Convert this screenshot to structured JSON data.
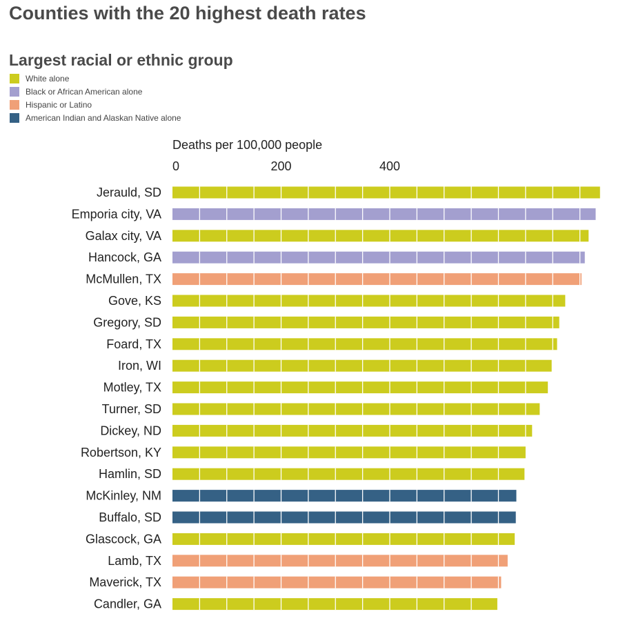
{
  "chart_data": {
    "type": "bar",
    "orientation": "horizontal",
    "title": "Counties with the 20 highest death rates",
    "legend_title": "Largest racial or ethnic group",
    "legend": [
      {
        "name": "White alone",
        "color": "#cccc1e"
      },
      {
        "name": "Black or African American alone",
        "color": "#a39fcf"
      },
      {
        "name": "Hispanic or Latino",
        "color": "#f0a077"
      },
      {
        "name": "American Indian and Alaskan Native alone",
        "color": "#356185"
      }
    ],
    "xlabel": "Deaths per 100,000 people",
    "xticks": [
      0,
      200,
      400
    ],
    "xtick_labels": [
      "0",
      "200",
      "400"
    ],
    "xlim": [
      0,
      790
    ],
    "categories": [
      "Jerauld, SD",
      "Emporia city, VA",
      "Galax city, VA",
      "Hancock, GA",
      "McMullen, TX",
      "Gove, KS",
      "Gregory, SD",
      "Foard, TX",
      "Iron, WI",
      "Motley, TX",
      "Turner, SD",
      "Dickey, ND",
      "Robertson, KY",
      "Hamlin, SD",
      "McKinley, NM",
      "Buffalo, SD",
      "Glascock, GA",
      "Lamb, TX",
      "Maverick, TX",
      "Candler, GA"
    ],
    "values": [
      787,
      779,
      766,
      759,
      753,
      723,
      712,
      708,
      698,
      691,
      676,
      662,
      650,
      648,
      633,
      632,
      630,
      617,
      605,
      598
    ],
    "groups": [
      "White alone",
      "Black or African American alone",
      "White alone",
      "Black or African American alone",
      "Hispanic or Latino",
      "White alone",
      "White alone",
      "White alone",
      "White alone",
      "White alone",
      "White alone",
      "White alone",
      "White alone",
      "White alone",
      "American Indian and Alaskan Native alone",
      "American Indian and Alaskan Native alone",
      "White alone",
      "Hispanic or Latino",
      "Hispanic or Latino",
      "White alone"
    ]
  }
}
